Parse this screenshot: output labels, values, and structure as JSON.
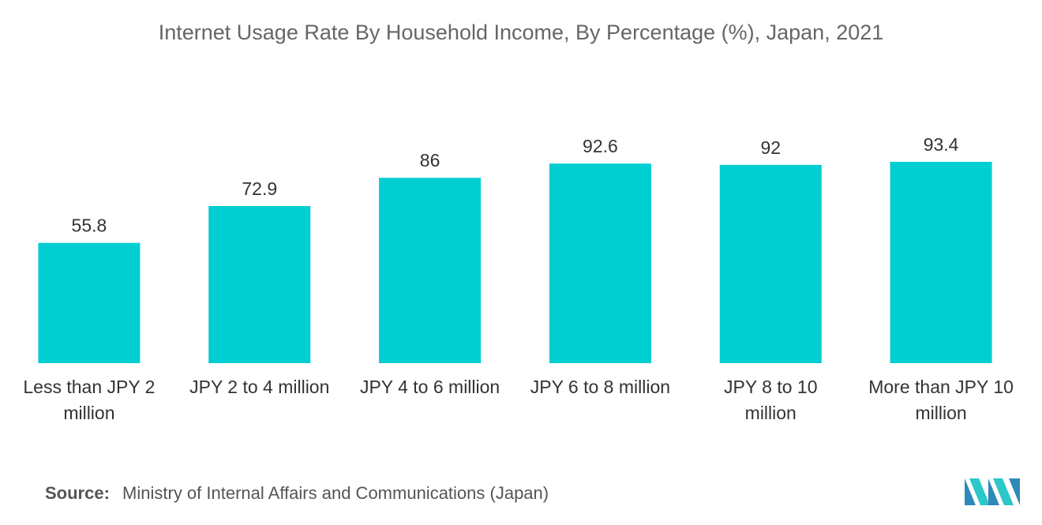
{
  "title": "Internet Usage Rate By Household Income, By Percentage (%), Japan, 2021",
  "chart_data": {
    "type": "bar",
    "title": "Internet Usage Rate By Household Income, By Percentage (%), Japan, 2021",
    "categories": [
      [
        "Less than JPY 2",
        "million"
      ],
      [
        "JPY 2 to 4 million"
      ],
      [
        "JPY 4 to 6 million"
      ],
      [
        "JPY 6 to 8 million"
      ],
      [
        "JPY 8 to 10",
        "million"
      ],
      [
        "More than JPY 10",
        "million"
      ]
    ],
    "values": [
      55.8,
      72.9,
      86,
      92.6,
      92,
      93.4
    ],
    "value_labels": [
      "55.8",
      "72.9",
      "86",
      "92.6",
      "92",
      "93.4"
    ],
    "bar_color": "#00CED1",
    "ylim": [
      0,
      100
    ],
    "grid": false,
    "legend": "none"
  },
  "source": {
    "label": "Source:",
    "text": "Ministry of Internal Affairs and Communications (Japan)"
  },
  "brand_colors": [
    "#2E8AB8",
    "#2CC7C9"
  ]
}
